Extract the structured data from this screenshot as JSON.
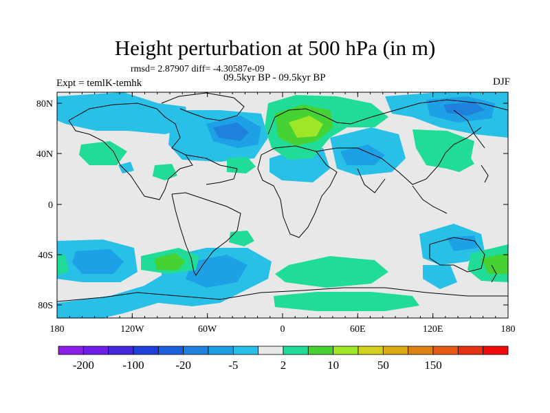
{
  "title": "Height perturbation at 500 hPa (in m)",
  "stats": "rmsd= 2.87907 diff= -4.30587e-09",
  "left_label": "Expt = temlK-temhk",
  "center_label": "09.5kyr BP - 09.5kyr BP",
  "right_label": "DJF",
  "lat_ticks": [
    "80N",
    "40N",
    "0",
    "40S",
    "80S"
  ],
  "lon_ticks": [
    "180",
    "120W",
    "60W",
    "0",
    "60E",
    "120E",
    "180"
  ],
  "colorbar": {
    "colors": [
      "#8a1ee6",
      "#6e1ee6",
      "#4626dc",
      "#2040dc",
      "#1e60dc",
      "#1e82dc",
      "#1ea0e6",
      "#28c0e6",
      "#e8e8e8",
      "#20dc96",
      "#46d232",
      "#a0e628",
      "#d2d21e",
      "#dcaa14",
      "#dc8214",
      "#e65a14",
      "#e63214",
      "#f00a0a"
    ],
    "labels": [
      "-200",
      "-100",
      "-20",
      "-5",
      "2",
      "10",
      "50",
      "150"
    ]
  }
}
